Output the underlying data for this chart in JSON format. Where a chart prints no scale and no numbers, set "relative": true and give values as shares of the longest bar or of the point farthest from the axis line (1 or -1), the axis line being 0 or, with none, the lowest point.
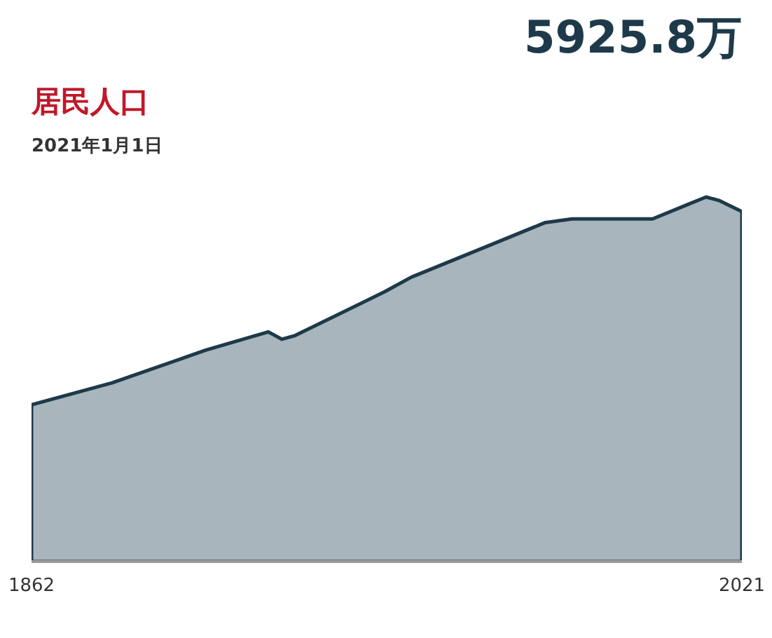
{
  "chart_data": {
    "type": "area",
    "title": "居民人口",
    "subtitle": "2021年1月1日",
    "annotations": [
      "5925.8万"
    ],
    "relative": true,
    "xlim": [
      1862,
      2021
    ],
    "xticks": [
      1862,
      2021
    ],
    "grid": false,
    "x": [
      1862,
      1880,
      1901,
      1915,
      1918,
      1921,
      1941,
      1947,
      1965,
      1977,
      1983,
      2001,
      2009,
      2013,
      2016,
      2021
    ],
    "series": [
      {
        "color": "#a9b5bc",
        "values": [
          0.43,
          0.49,
          0.58,
          0.63,
          0.61,
          0.62,
          0.74,
          0.78,
          0.87,
          0.93,
          0.94,
          0.94,
          0.98,
          1.0,
          0.99,
          0.96
        ]
      }
    ]
  }
}
